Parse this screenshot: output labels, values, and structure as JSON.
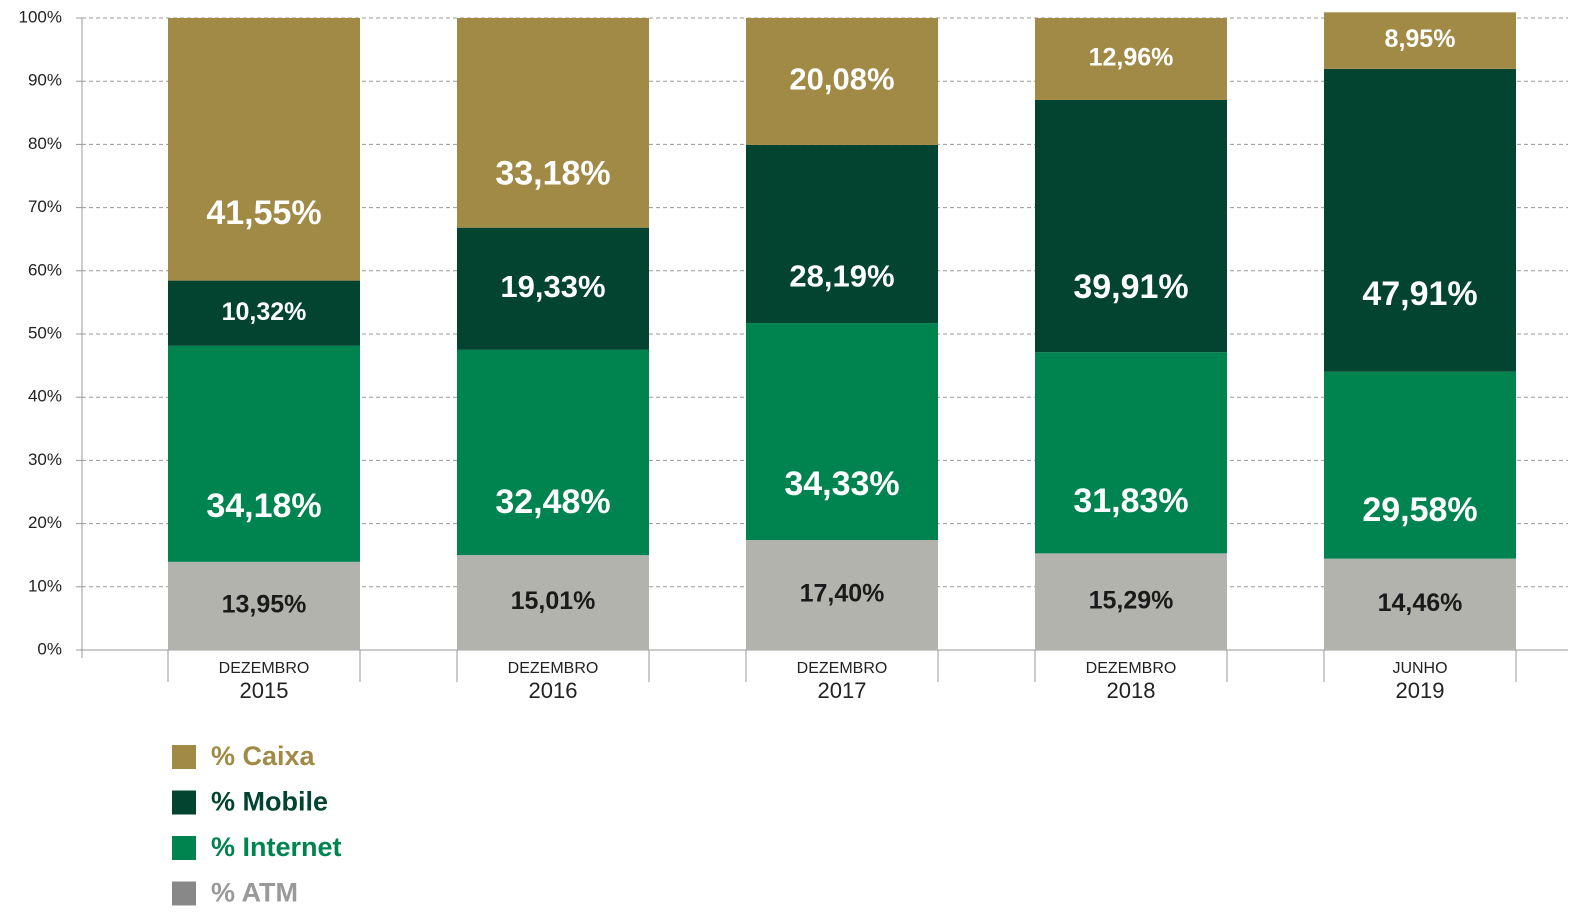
{
  "chart_data": {
    "type": "stacked_bar",
    "categories": [
      [
        "DEZEMBRO",
        "2015"
      ],
      [
        "DEZEMBRO",
        "2016"
      ],
      [
        "DEZEMBRO",
        "2017"
      ],
      [
        "DEZEMBRO",
        "2018"
      ],
      [
        "JUNHO",
        "2019"
      ]
    ],
    "series": [
      {
        "name": "% Caixa",
        "color": "#a08a45",
        "label_color": "#ffffff",
        "values": [
          41.55,
          33.18,
          20.08,
          12.96,
          8.95
        ],
        "value_labels": [
          "41,55%",
          "33,18%",
          "20,08%",
          "12,96%",
          "8,95%"
        ]
      },
      {
        "name": "% Mobile",
        "color": "#024430",
        "label_color": "#ffffff",
        "values": [
          10.32,
          19.33,
          28.19,
          39.91,
          47.91
        ],
        "value_labels": [
          "10,32%",
          "19,33%",
          "28,19%",
          "39,91%",
          "47,91%"
        ]
      },
      {
        "name": "% Internet",
        "color": "#00844f",
        "label_color": "#ffffff",
        "values": [
          34.18,
          32.48,
          34.33,
          31.83,
          29.58
        ],
        "value_labels": [
          "34,18%",
          "32,48%",
          "34,33%",
          "31,83%",
          "29,58%"
        ]
      },
      {
        "name": "% ATM",
        "color": "#b3b3ae",
        "label_color": "#1a1a1a",
        "values": [
          13.95,
          15.01,
          17.4,
          15.29,
          14.46
        ],
        "value_labels": [
          "13,95%",
          "15,01%",
          "17,40%",
          "15,29%",
          "14,46%"
        ]
      }
    ],
    "ylim": [
      0,
      100
    ],
    "yticks": [
      {
        "value": 0,
        "label": "0%"
      },
      {
        "value": 10,
        "label": "10%"
      },
      {
        "value": 20,
        "label": "20%"
      },
      {
        "value": 30,
        "label": "30%"
      },
      {
        "value": 40,
        "label": "40%"
      },
      {
        "value": 50,
        "label": "50%"
      },
      {
        "value": 60,
        "label": "60%"
      },
      {
        "value": 70,
        "label": "70%"
      },
      {
        "value": 80,
        "label": "80%"
      },
      {
        "value": 90,
        "label": "90%"
      },
      {
        "value": 100,
        "label": "100%"
      }
    ],
    "grid": true
  }
}
